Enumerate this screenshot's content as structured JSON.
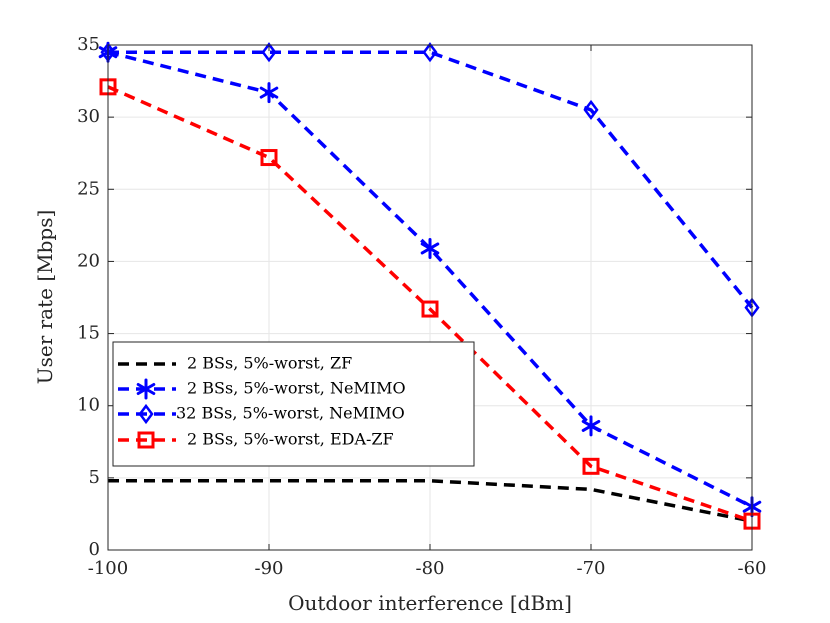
{
  "chart_data": {
    "type": "line",
    "title": "",
    "xlabel": "Outdoor interference [dBm]",
    "ylabel": "User rate [Mbps]",
    "xlim": [
      -100,
      -60
    ],
    "ylim": [
      0,
      35
    ],
    "grid": true,
    "legend_position": "bottom-left",
    "x": [
      -100,
      -90,
      -80,
      -70,
      -60
    ],
    "x_tick_labels": [
      "-100",
      "-90",
      "-80",
      "-70",
      "-60"
    ],
    "y_ticks": [
      0,
      5,
      10,
      15,
      20,
      25,
      30,
      35
    ],
    "y_tick_labels": [
      "0",
      "5",
      "10",
      "15",
      "20",
      "25",
      "30",
      "35"
    ],
    "series": [
      {
        "name": "2 BSs, 5%-worst, ZF",
        "color": "#000000",
        "marker": "none",
        "values": [
          4.8,
          4.8,
          4.8,
          4.2,
          2.0
        ]
      },
      {
        "name": "2 BSs, 5%-worst, NeMIMO",
        "color": "#0000ff",
        "marker": "asterisk",
        "values": [
          34.5,
          31.7,
          20.9,
          8.6,
          3.0
        ]
      },
      {
        "name": "32 BSs, 5%-worst, NeMIMO",
        "color": "#0000ff",
        "marker": "diamond",
        "values": [
          34.5,
          34.5,
          34.5,
          30.5,
          16.8
        ]
      },
      {
        "name": "2 BSs, 5%-worst, EDA-ZF",
        "color": "#ff0000",
        "marker": "square",
        "values": [
          32.1,
          27.2,
          16.7,
          5.8,
          2.0
        ]
      }
    ]
  }
}
